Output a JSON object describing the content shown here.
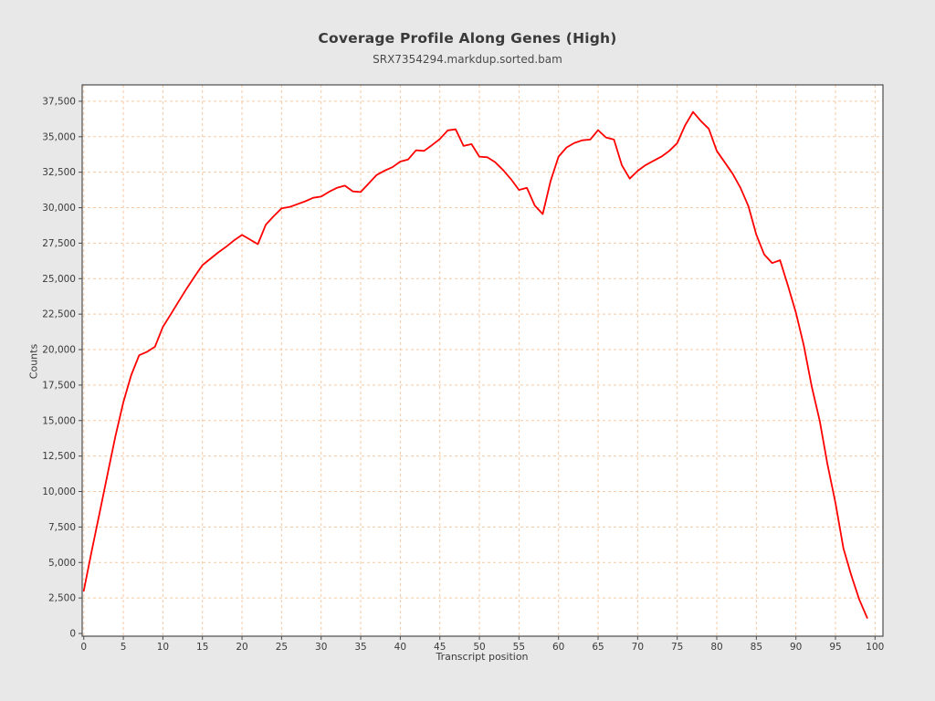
{
  "chart": {
    "title": "Coverage Profile Along Genes (High)",
    "subtitle": "SRX7354294.markdup.sorted.bam",
    "xlabel": "Transcript position",
    "ylabel": "Counts"
  },
  "chart_data": {
    "type": "line",
    "title": "Coverage Profile Along Genes (High)",
    "subtitle": "SRX7354294.markdup.sorted.bam",
    "xlabel": "Transcript position",
    "ylabel": "Counts",
    "legend": "none",
    "grid": true,
    "x_ticks": [
      0,
      5,
      10,
      15,
      20,
      25,
      30,
      35,
      40,
      45,
      50,
      55,
      60,
      65,
      70,
      75,
      80,
      85,
      90,
      95,
      100
    ],
    "y_ticks": [
      0,
      2500,
      5000,
      7500,
      10000,
      12500,
      15000,
      17500,
      20000,
      22500,
      25000,
      27500,
      30000,
      32500,
      35000,
      37500
    ],
    "xlim": [
      -0.2,
      101.0
    ],
    "ylim": [
      -193,
      38653
    ],
    "x": [
      0,
      1,
      2,
      3,
      4,
      5,
      6,
      7,
      8,
      9,
      10,
      11,
      12,
      13,
      14,
      15,
      16,
      17,
      18,
      19,
      20,
      21,
      22,
      23,
      24,
      25,
      26,
      27,
      28,
      29,
      30,
      31,
      32,
      33,
      34,
      35,
      36,
      37,
      38,
      39,
      40,
      41,
      42,
      43,
      44,
      45,
      46,
      47,
      48,
      49,
      50,
      51,
      52,
      53,
      54,
      55,
      56,
      57,
      58,
      59,
      60,
      61,
      62,
      63,
      64,
      65,
      66,
      67,
      68,
      69,
      70,
      71,
      72,
      73,
      74,
      75,
      76,
      77,
      78,
      79,
      80,
      81,
      82,
      83,
      84,
      85,
      86,
      87,
      88,
      89,
      90,
      91,
      92,
      93,
      94,
      95,
      96,
      97,
      98,
      99
    ],
    "values": [
      3000,
      5800,
      8500,
      11200,
      13900,
      16300,
      18200,
      19600,
      19850,
      20200,
      21600,
      22500,
      23400,
      24300,
      25150,
      25950,
      26400,
      26850,
      27250,
      27700,
      28080,
      27760,
      27430,
      28800,
      29400,
      29950,
      30050,
      30250,
      30450,
      30700,
      30780,
      31120,
      31400,
      31550,
      31150,
      31100,
      31700,
      32300,
      32600,
      32850,
      33250,
      33400,
      34050,
      34000,
      34400,
      34840,
      35450,
      35520,
      34350,
      34480,
      33600,
      33550,
      33200,
      32650,
      32000,
      31250,
      31400,
      30150,
      29550,
      31880,
      33600,
      34240,
      34560,
      34750,
      34800,
      35460,
      34950,
      34800,
      33000,
      32050,
      32600,
      33000,
      33300,
      33600,
      34000,
      34550,
      35800,
      36750,
      36100,
      35550,
      34000,
      33200,
      32400,
      31400,
      30100,
      28100,
      26700,
      26100,
      26300,
      24500,
      22600,
      20300,
      17400,
      15000,
      11900,
      9200,
      6000,
      4100,
      2400,
      1100
    ],
    "colors": {
      "line": "#ff0000",
      "grid": "#f5c9a3",
      "frame": "#4c4c4c",
      "plot_background": "#ffffff",
      "page_background": "#e8e8e8",
      "tick_text": "#3a3a3a"
    }
  }
}
